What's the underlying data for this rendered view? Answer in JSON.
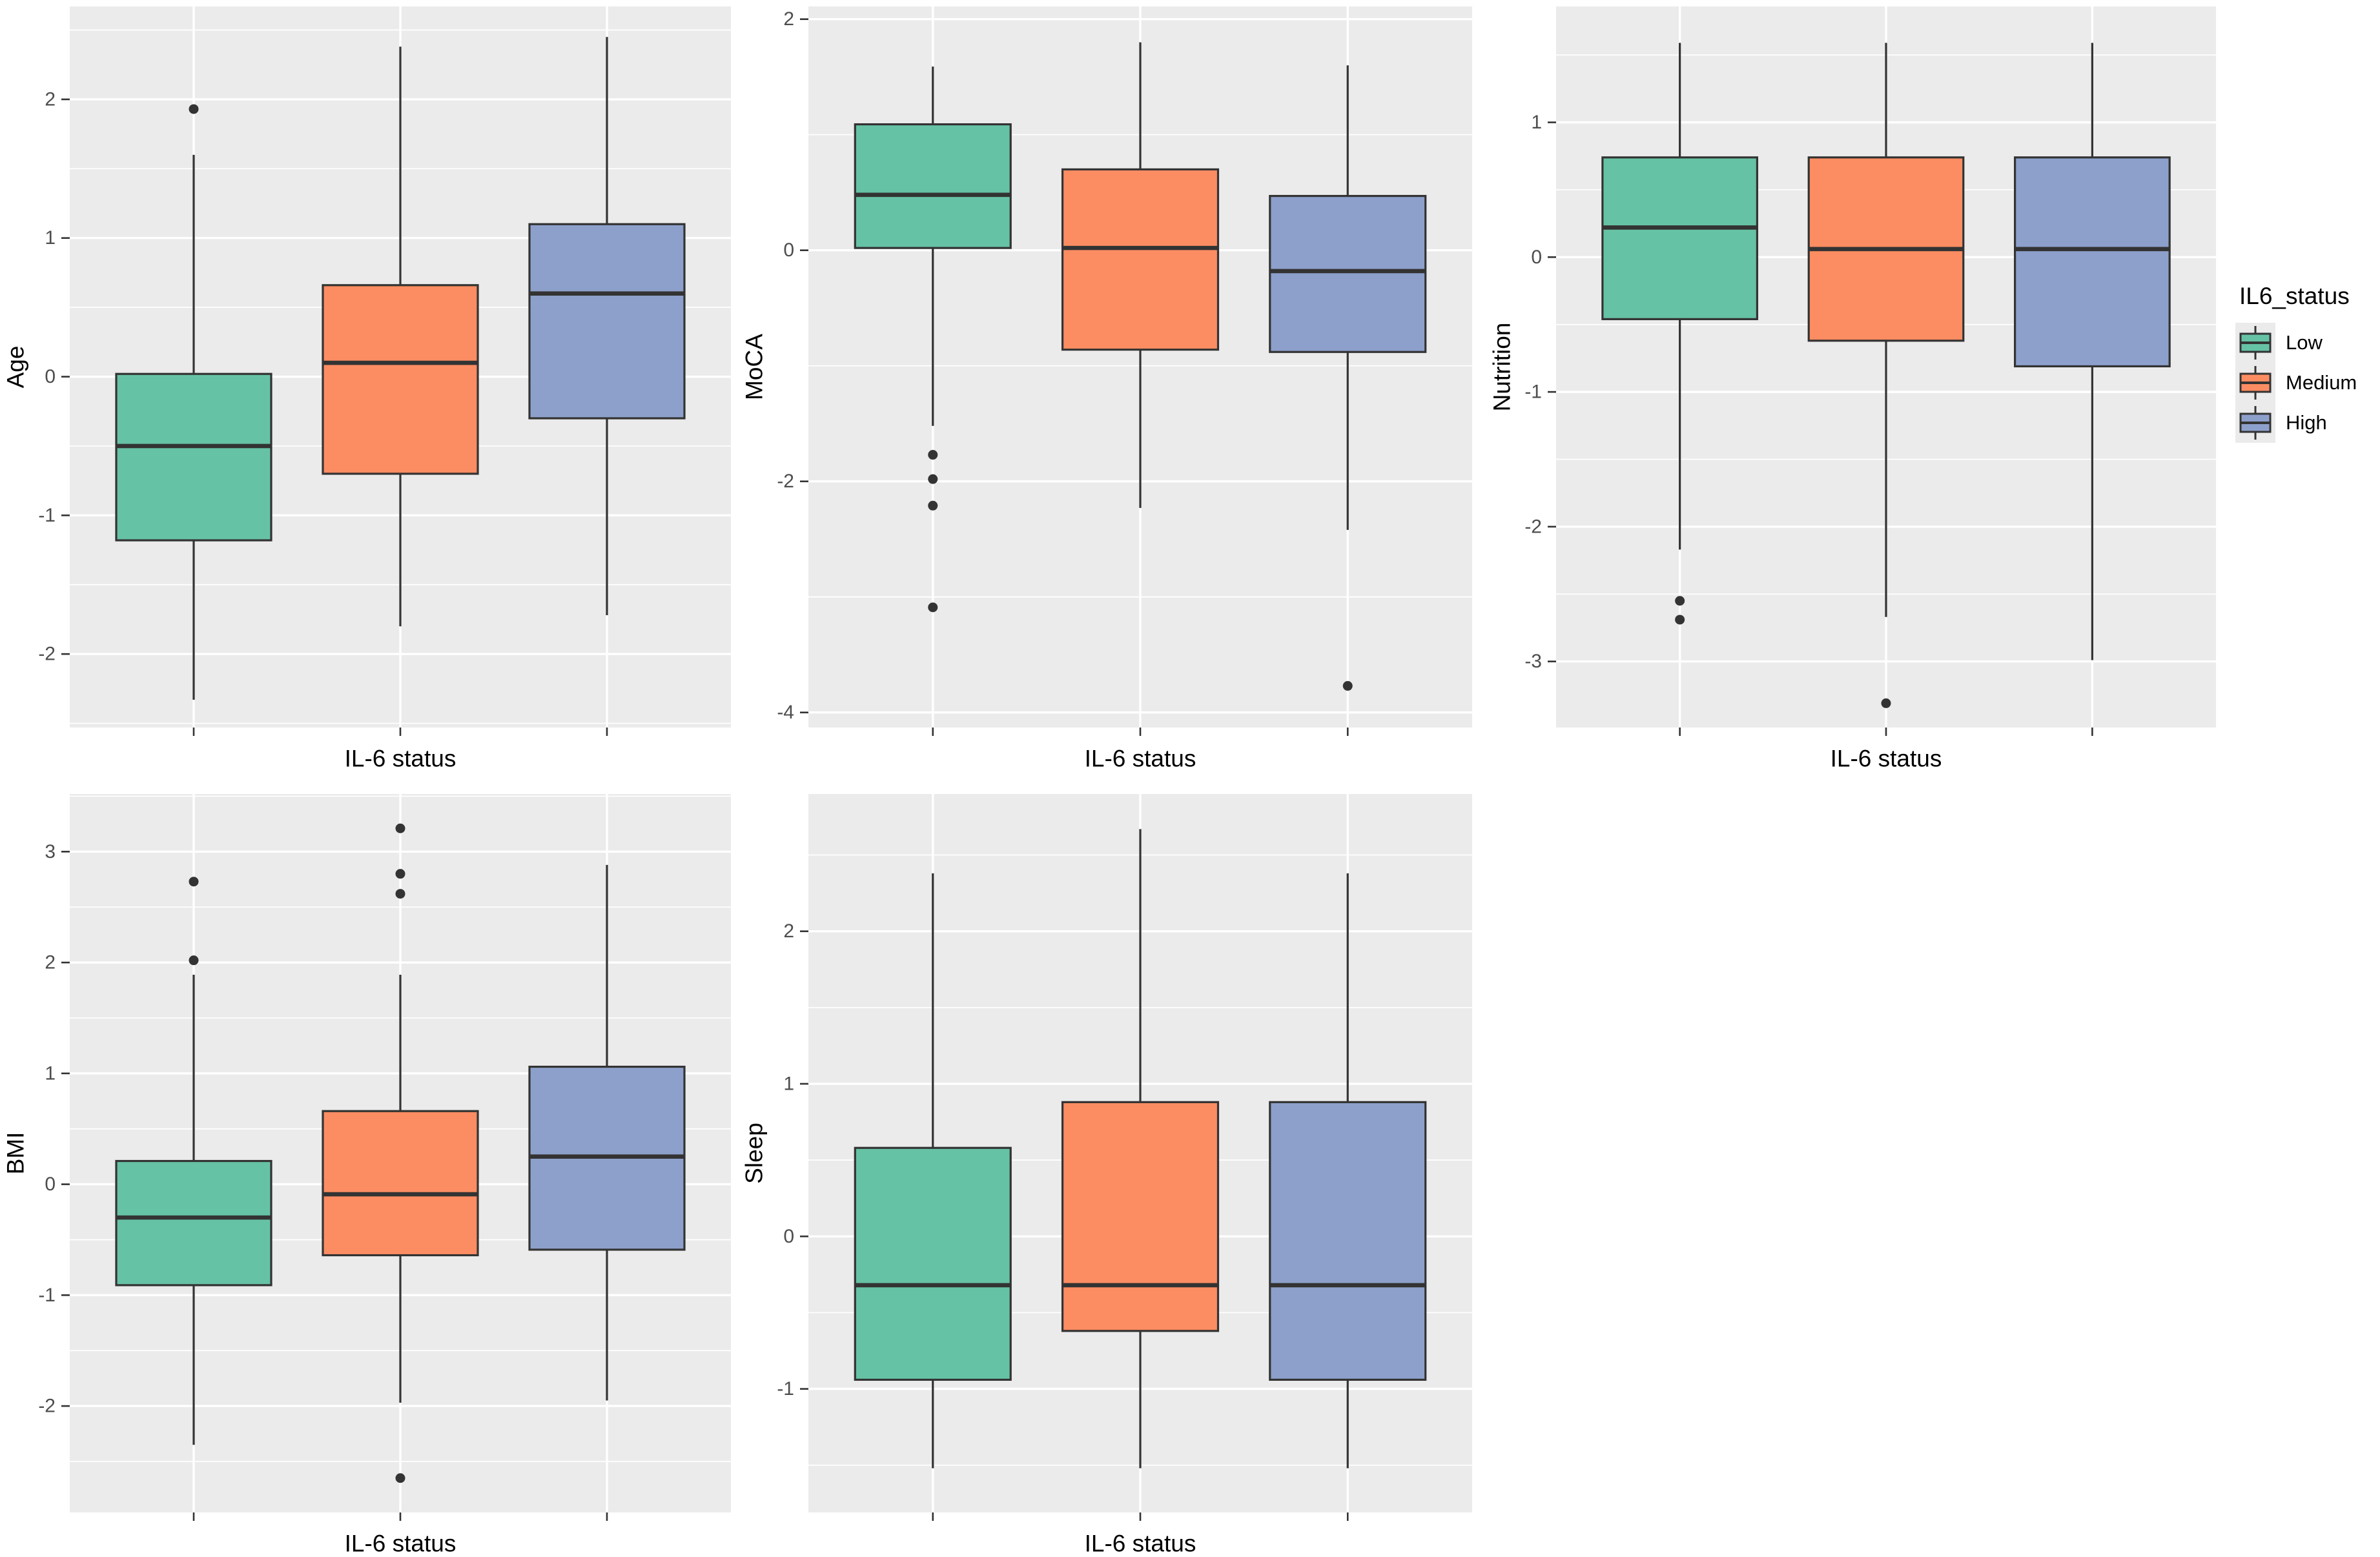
{
  "figure": {
    "background": "#FFFFFF"
  },
  "legend": {
    "title": "IL6_status",
    "items": [
      {
        "label": "Low",
        "color": "#66C2A5"
      },
      {
        "label": "Medium",
        "color": "#FC8D62"
      },
      {
        "label": "High",
        "color": "#8DA0CB"
      }
    ]
  },
  "chart_data": {
    "type": "boxplot-grid",
    "xlabel": "IL-6 status",
    "categories": [
      "Low",
      "Medium",
      "High"
    ],
    "series_colors": [
      "#66C2A5",
      "#FC8D62",
      "#8DA0CB"
    ],
    "theme": {
      "panel_bg": "#EBEBEB",
      "grid_color": "#FFFFFF",
      "box_stroke": "#333333",
      "tick_color": "#333333",
      "tick_label_color": "#4D4D4D",
      "title_color": "#000000",
      "legend_position": "right",
      "grid": "on"
    },
    "panels": [
      {
        "ylabel": "Age",
        "ylim": [
          -2.53,
          2.67
        ],
        "major_ticks": [
          -2,
          -1,
          0,
          1,
          2
        ],
        "minor_ticks": [
          -2.5,
          -1.5,
          -0.5,
          0.5,
          1.5,
          2.5
        ],
        "boxes": [
          {
            "group": "Low",
            "whisker_low": -2.33,
            "q1": -1.18,
            "median": -0.5,
            "q3": 0.02,
            "whisker_high": 1.6,
            "outliers": [
              1.93
            ]
          },
          {
            "group": "Medium",
            "whisker_low": -1.8,
            "q1": -0.7,
            "median": 0.1,
            "q3": 0.66,
            "whisker_high": 2.38,
            "outliers": []
          },
          {
            "group": "High",
            "whisker_low": -1.72,
            "q1": -0.3,
            "median": 0.6,
            "q3": 1.1,
            "whisker_high": 2.45,
            "outliers": []
          }
        ]
      },
      {
        "ylabel": "MoCA",
        "ylim": [
          -4.13,
          2.11
        ],
        "major_ticks": [
          -4,
          -2,
          0,
          2
        ],
        "minor_ticks": [
          -3,
          -1,
          1
        ],
        "boxes": [
          {
            "group": "Low",
            "whisker_low": -1.52,
            "q1": 0.02,
            "median": 0.48,
            "q3": 1.09,
            "whisker_high": 1.59,
            "outliers": [
              -1.77,
              -1.98,
              -2.21,
              -3.09
            ]
          },
          {
            "group": "Medium",
            "whisker_low": -2.23,
            "q1": -0.86,
            "median": 0.02,
            "q3": 0.7,
            "whisker_high": 1.8,
            "outliers": []
          },
          {
            "group": "High",
            "whisker_low": -2.42,
            "q1": -0.88,
            "median": -0.18,
            "q3": 0.47,
            "whisker_high": 1.6,
            "outliers": [
              -3.77
            ]
          }
        ]
      },
      {
        "ylabel": "Nutrition",
        "ylim": [
          -3.49,
          1.86
        ],
        "major_ticks": [
          -3,
          -2,
          -1,
          0,
          1
        ],
        "minor_ticks": [
          -2.5,
          -1.5,
          -0.5,
          0.5,
          1.5
        ],
        "boxes": [
          {
            "group": "Low",
            "whisker_low": -2.17,
            "q1": -0.46,
            "median": 0.22,
            "q3": 0.74,
            "whisker_high": 1.59,
            "outliers": [
              -2.55,
              -2.69
            ]
          },
          {
            "group": "Medium",
            "whisker_low": -2.67,
            "q1": -0.62,
            "median": 0.06,
            "q3": 0.74,
            "whisker_high": 1.59,
            "outliers": [
              -3.31
            ]
          },
          {
            "group": "High",
            "whisker_low": -2.99,
            "q1": -0.81,
            "median": 0.06,
            "q3": 0.74,
            "whisker_high": 1.59,
            "outliers": []
          }
        ]
      },
      {
        "ylabel": "BMI",
        "ylim": [
          -2.96,
          3.52
        ],
        "major_ticks": [
          -2,
          -1,
          0,
          1,
          2,
          3
        ],
        "minor_ticks": [
          -2.5,
          -1.5,
          -0.5,
          0.5,
          1.5,
          2.5,
          3.5
        ],
        "boxes": [
          {
            "group": "Low",
            "whisker_low": -2.35,
            "q1": -0.91,
            "median": -0.3,
            "q3": 0.21,
            "whisker_high": 1.89,
            "outliers": [
              2.73,
              2.02
            ]
          },
          {
            "group": "Medium",
            "whisker_low": -1.97,
            "q1": -0.64,
            "median": -0.09,
            "q3": 0.66,
            "whisker_high": 1.89,
            "outliers": [
              3.21,
              2.8,
              2.62,
              -2.65
            ]
          },
          {
            "group": "High",
            "whisker_low": -1.95,
            "q1": -0.59,
            "median": 0.25,
            "q3": 1.06,
            "whisker_high": 2.88,
            "outliers": []
          }
        ]
      },
      {
        "ylabel": "Sleep",
        "ylim": [
          -1.81,
          2.9
        ],
        "major_ticks": [
          -1,
          0,
          1,
          2
        ],
        "minor_ticks": [
          -1.5,
          -0.5,
          0.5,
          1.5,
          2.5
        ],
        "boxes": [
          {
            "group": "Low",
            "whisker_low": -1.52,
            "q1": -0.94,
            "median": -0.32,
            "q3": 0.58,
            "whisker_high": 2.38,
            "outliers": []
          },
          {
            "group": "Medium",
            "whisker_low": -1.52,
            "q1": -0.62,
            "median": -0.32,
            "q3": 0.88,
            "whisker_high": 2.67,
            "outliers": []
          },
          {
            "group": "High",
            "whisker_low": -1.52,
            "q1": -0.94,
            "median": -0.32,
            "q3": 0.88,
            "whisker_high": 2.38,
            "outliers": []
          }
        ]
      }
    ]
  }
}
